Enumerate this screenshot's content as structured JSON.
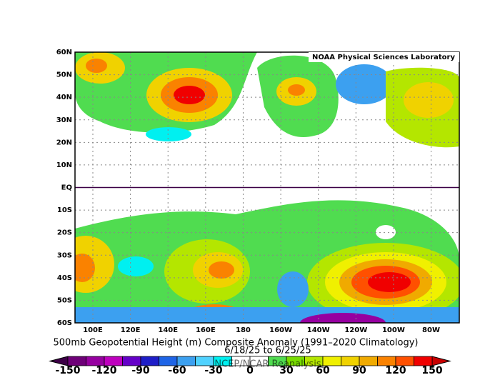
{
  "map": {
    "title": "500mb Geopotential Height (m) Composite Anomaly (1991–2020 Climatology)",
    "subtitle": "6/18/25  to 6/25/25",
    "credit": "NOAA Physical Sciences Laboratory",
    "watermark": "NCEP/NCAR Reanalysis",
    "lon_range": [
      90.5,
      295
    ],
    "lat_range": [
      -60,
      60
    ],
    "lat_ticks": [
      {
        "value": 60,
        "label": "60N"
      },
      {
        "value": 50,
        "label": "50N"
      },
      {
        "value": 40,
        "label": "40N"
      },
      {
        "value": 30,
        "label": "30N"
      },
      {
        "value": 20,
        "label": "20N"
      },
      {
        "value": 10,
        "label": "10N"
      },
      {
        "value": 0,
        "label": "EQ"
      },
      {
        "value": -10,
        "label": "10S"
      },
      {
        "value": -20,
        "label": "20S"
      },
      {
        "value": -30,
        "label": "30S"
      },
      {
        "value": -40,
        "label": "40S"
      },
      {
        "value": -50,
        "label": "50S"
      },
      {
        "value": -60,
        "label": "60S"
      }
    ],
    "lon_ticks": [
      {
        "value": 100,
        "label": "100E"
      },
      {
        "value": 120,
        "label": "120E"
      },
      {
        "value": 140,
        "label": "140E"
      },
      {
        "value": 160,
        "label": "160E"
      },
      {
        "value": 180,
        "label": "180"
      },
      {
        "value": 200,
        "label": "160W"
      },
      {
        "value": 220,
        "label": "140W"
      },
      {
        "value": 240,
        "label": "120W"
      },
      {
        "value": 260,
        "label": "100W"
      },
      {
        "value": 280,
        "label": "80W"
      }
    ],
    "colorbar": {
      "bounds": [
        -150,
        -135,
        -120,
        -105,
        -90,
        -75,
        -60,
        -45,
        -30,
        -15,
        0,
        15,
        30,
        45,
        60,
        75,
        90,
        105,
        120,
        135,
        150
      ],
      "colors": [
        "#3c0046",
        "#6e0078",
        "#9600a0",
        "#be00be",
        "#6400c8",
        "#1e1ec8",
        "#1e64e6",
        "#3ca0f0",
        "#50d2ff",
        "#00f0f0",
        "#ffffff",
        "#ffffff",
        "#50dc50",
        "#78dc00",
        "#b4e600",
        "#f0f000",
        "#f0d200",
        "#f0aa00",
        "#fa8200",
        "#ff5000",
        "#f00000",
        "#c80000"
      ],
      "ticks": [
        -150,
        -120,
        -90,
        -60,
        -30,
        0,
        30,
        60,
        90,
        120,
        150
      ]
    }
  }
}
